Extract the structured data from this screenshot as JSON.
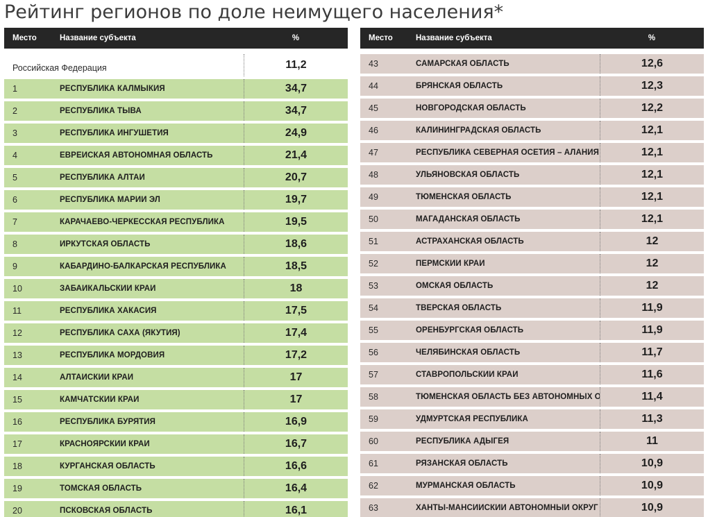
{
  "title": "Рейтинг регионов по доле неимущего населения*",
  "headers": {
    "rank": "Место",
    "name": "Название субъекта",
    "value": "%"
  },
  "federation": {
    "name": "Российская Федерация",
    "value": "11,2"
  },
  "colors": {
    "header_bg": "#262626",
    "left_rows": "#c5dea3",
    "right_rows": "#dccfca"
  },
  "left_rows": [
    {
      "rank": "1",
      "name": "Республика Калмыкия",
      "value": "34,7"
    },
    {
      "rank": "2",
      "name": "Республика Тыва",
      "value": "34,7"
    },
    {
      "rank": "3",
      "name": "Республика Ингушетия",
      "value": "24,9"
    },
    {
      "rank": "4",
      "name": "Еврейская автономная область",
      "value": "21,4"
    },
    {
      "rank": "5",
      "name": "Республика Алтай",
      "value": "20,7"
    },
    {
      "rank": "6",
      "name": "Республика Марий Эл",
      "value": "19,7"
    },
    {
      "rank": "7",
      "name": "Карачаево-Черкесская Республика",
      "value": "19,5"
    },
    {
      "rank": "8",
      "name": "Иркутская область",
      "value": "18,6"
    },
    {
      "rank": "9",
      "name": "Кабардино-Балкарская Республика",
      "value": "18,5"
    },
    {
      "rank": "10",
      "name": "Забайкальский край",
      "value": "18"
    },
    {
      "rank": "11",
      "name": "Республика Хакасия",
      "value": "17,5"
    },
    {
      "rank": "12",
      "name": "Республика Саха (Якутия)",
      "value": "17,4"
    },
    {
      "rank": "13",
      "name": "Республика Мордовия",
      "value": "17,2"
    },
    {
      "rank": "14",
      "name": "Алтайский край",
      "value": "17"
    },
    {
      "rank": "15",
      "name": "Камчатский край",
      "value": "17"
    },
    {
      "rank": "16",
      "name": "Республика Бурятия",
      "value": "16,9"
    },
    {
      "rank": "17",
      "name": "Красноярский край",
      "value": "16,7"
    },
    {
      "rank": "18",
      "name": "Курганская область",
      "value": "16,6"
    },
    {
      "rank": "19",
      "name": "Томская область",
      "value": "16,4"
    },
    {
      "rank": "20",
      "name": "Псковская область",
      "value": "16,1"
    }
  ],
  "right_rows": [
    {
      "rank": "43",
      "name": "Самарская область",
      "value": "12,6"
    },
    {
      "rank": "44",
      "name": "Брянская область",
      "value": "12,3"
    },
    {
      "rank": "45",
      "name": "Новгородская область",
      "value": "12,2"
    },
    {
      "rank": "46",
      "name": "Калининградская область",
      "value": "12,1"
    },
    {
      "rank": "47",
      "name": "Республика Северная Осетия – Алания",
      "value": "12,1"
    },
    {
      "rank": "48",
      "name": "Ульяновская область",
      "value": "12,1"
    },
    {
      "rank": "49",
      "name": "Тюменская область",
      "value": "12,1"
    },
    {
      "rank": "50",
      "name": "Магаданская область",
      "value": "12,1"
    },
    {
      "rank": "51",
      "name": "Астраханская область",
      "value": "12"
    },
    {
      "rank": "52",
      "name": "Пермский край",
      "value": "12"
    },
    {
      "rank": "53",
      "name": "Омская область",
      "value": "12"
    },
    {
      "rank": "54",
      "name": "Тверская область",
      "value": "11,9"
    },
    {
      "rank": "55",
      "name": "Оренбургская область",
      "value": "11,9"
    },
    {
      "rank": "56",
      "name": "Челябинская область",
      "value": "11,7"
    },
    {
      "rank": "57",
      "name": "Ставропольский край",
      "value": "11,6"
    },
    {
      "rank": "58",
      "name": "Тюменская область без автономных округов",
      "value": "11,4"
    },
    {
      "rank": "59",
      "name": "Удмуртская Республика",
      "value": "11,3"
    },
    {
      "rank": "60",
      "name": "Республика Адыгея",
      "value": "11"
    },
    {
      "rank": "61",
      "name": "Рязанская область",
      "value": "10,9"
    },
    {
      "rank": "62",
      "name": "Мурманская область",
      "value": "10,9"
    },
    {
      "rank": "63",
      "name": "Ханты-Мансийский автономный округ – Югра",
      "value": "10,9"
    }
  ]
}
